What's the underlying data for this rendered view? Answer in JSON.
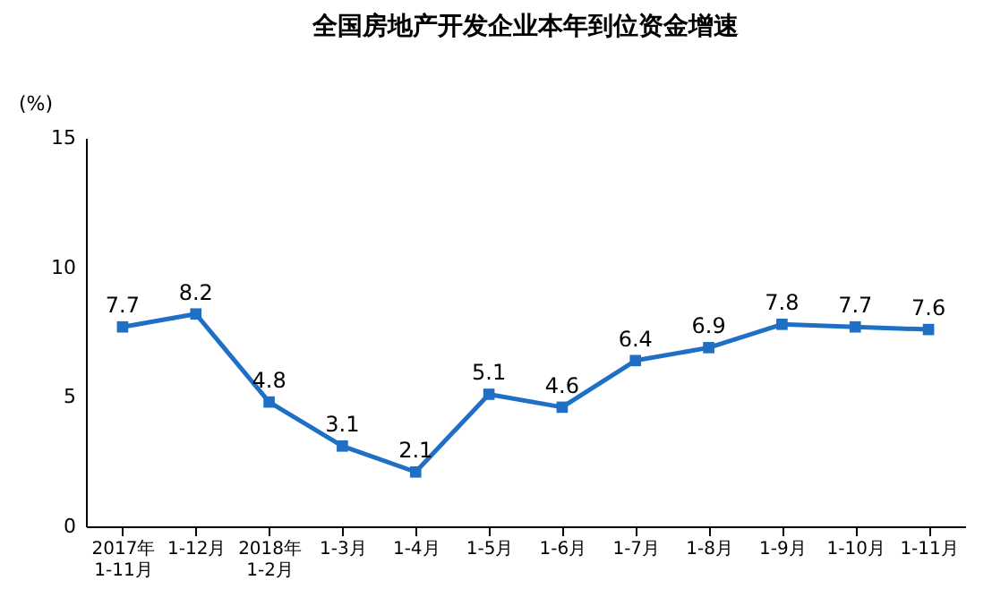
{
  "chart_data": {
    "type": "line",
    "title": "全国房地产开发企业本年到位资金增速",
    "ylabel": "(%)",
    "categories": [
      "2017年\n1-11月",
      "1-12月",
      "2018年\n1-2月",
      "1-3月",
      "1-4月",
      "1-5月",
      "1-6月",
      "1-7月",
      "1-8月",
      "1-9月",
      "1-10月",
      "1-11月"
    ],
    "series": [
      {
        "color": "#1f6fc5",
        "values": [
          7.7,
          8.2,
          4.8,
          3.1,
          2.1,
          5.1,
          4.6,
          6.4,
          6.9,
          7.8,
          7.7,
          7.6
        ]
      }
    ],
    "ylim": [
      0,
      15
    ],
    "yticks": [
      0,
      5,
      10,
      15
    ],
    "marker": "square",
    "line_style": "solid",
    "data_labels": true,
    "grid": false
  }
}
